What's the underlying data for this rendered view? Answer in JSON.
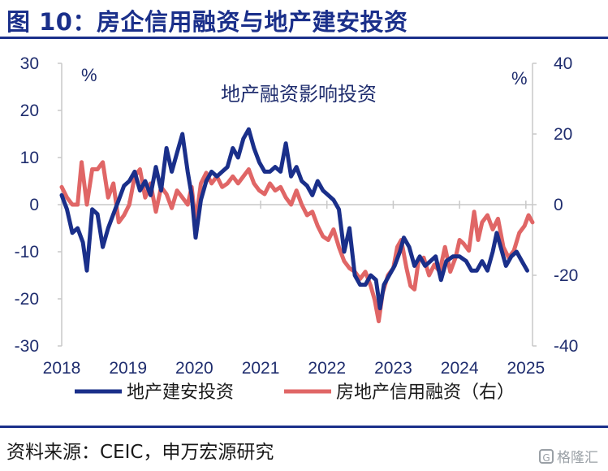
{
  "header": {
    "title": "图 10：房企信用融资与地产建安投资"
  },
  "footer": {
    "source": "资料来源：CEIC，申万宏源研究",
    "watermark": "格隆汇",
    "watermark_icon": "G"
  },
  "colors": {
    "navy": "#1a2f8a",
    "series_left": "#1a2f8a",
    "series_right": "#e06666"
  },
  "chart_data": {
    "type": "line",
    "title": "地产融资影响投资",
    "y_left": {
      "unit": "%",
      "lim": [
        -30,
        30
      ],
      "ticks": [
        30,
        20,
        10,
        0,
        -10,
        -20,
        -30
      ]
    },
    "y_right": {
      "unit": "%",
      "lim": [
        -40,
        40
      ],
      "ticks": [
        40,
        20,
        0,
        -20,
        -40
      ]
    },
    "x": {
      "lim": [
        2018,
        2025.1
      ],
      "ticks": [
        2018,
        2019,
        2020,
        2021,
        2022,
        2023,
        2024,
        2025
      ]
    },
    "series": [
      {
        "name": "地产建安投资",
        "axis": "left",
        "color": "#1a2f8a",
        "points": [
          [
            2018.0,
            2
          ],
          [
            2018.08,
            -1
          ],
          [
            2018.16,
            -6
          ],
          [
            2018.24,
            -5
          ],
          [
            2018.32,
            -8
          ],
          [
            2018.38,
            -14
          ],
          [
            2018.46,
            -1
          ],
          [
            2018.54,
            -2
          ],
          [
            2018.62,
            -9
          ],
          [
            2018.7,
            -5
          ],
          [
            2018.78,
            -2
          ],
          [
            2018.86,
            1
          ],
          [
            2018.94,
            4
          ],
          [
            2019.02,
            5
          ],
          [
            2019.1,
            7
          ],
          [
            2019.18,
            3
          ],
          [
            2019.26,
            5
          ],
          [
            2019.34,
            2
          ],
          [
            2019.42,
            8
          ],
          [
            2019.5,
            3
          ],
          [
            2019.58,
            12
          ],
          [
            2019.66,
            7
          ],
          [
            2019.74,
            11
          ],
          [
            2019.82,
            15
          ],
          [
            2019.9,
            7
          ],
          [
            2019.96,
            2
          ],
          [
            2020.02,
            -7
          ],
          [
            2020.1,
            1
          ],
          [
            2020.18,
            5
          ],
          [
            2020.26,
            7
          ],
          [
            2020.34,
            6
          ],
          [
            2020.42,
            7
          ],
          [
            2020.5,
            8
          ],
          [
            2020.58,
            12
          ],
          [
            2020.66,
            10
          ],
          [
            2020.74,
            14
          ],
          [
            2020.82,
            16
          ],
          [
            2020.9,
            12
          ],
          [
            2020.98,
            9
          ],
          [
            2021.06,
            7
          ],
          [
            2021.14,
            7
          ],
          [
            2021.22,
            8
          ],
          [
            2021.3,
            7
          ],
          [
            2021.38,
            13
          ],
          [
            2021.46,
            6
          ],
          [
            2021.54,
            8
          ],
          [
            2021.62,
            5
          ],
          [
            2021.7,
            4
          ],
          [
            2021.78,
            2
          ],
          [
            2021.86,
            5
          ],
          [
            2021.94,
            3
          ],
          [
            2022.02,
            2
          ],
          [
            2022.1,
            1
          ],
          [
            2022.18,
            -1
          ],
          [
            2022.26,
            -10
          ],
          [
            2022.34,
            -5
          ],
          [
            2022.42,
            -15
          ],
          [
            2022.5,
            -17
          ],
          [
            2022.58,
            -17
          ],
          [
            2022.66,
            -15
          ],
          [
            2022.74,
            -16
          ],
          [
            2022.8,
            -22
          ],
          [
            2022.86,
            -17
          ],
          [
            2022.94,
            -15
          ],
          [
            2023.02,
            -13
          ],
          [
            2023.1,
            -10
          ],
          [
            2023.16,
            -7
          ],
          [
            2023.24,
            -9
          ],
          [
            2023.32,
            -13
          ],
          [
            2023.4,
            -11
          ],
          [
            2023.48,
            -13
          ],
          [
            2023.56,
            -12
          ],
          [
            2023.64,
            -11
          ],
          [
            2023.72,
            -16
          ],
          [
            2023.8,
            -12
          ],
          [
            2023.9,
            -11
          ],
          [
            2024.0,
            -11
          ],
          [
            2024.1,
            -12
          ],
          [
            2024.18,
            -14
          ],
          [
            2024.26,
            -14
          ],
          [
            2024.34,
            -12
          ],
          [
            2024.42,
            -14
          ],
          [
            2024.5,
            -10
          ],
          [
            2024.56,
            -6
          ],
          [
            2024.62,
            -9
          ],
          [
            2024.7,
            -13
          ],
          [
            2024.78,
            -11
          ],
          [
            2024.86,
            -10
          ],
          [
            2024.94,
            -12
          ],
          [
            2025.02,
            -14
          ]
        ]
      },
      {
        "name": "房地产信用融资（右）",
        "axis": "right",
        "color": "#e06666",
        "points": [
          [
            2018.0,
            5
          ],
          [
            2018.08,
            2
          ],
          [
            2018.16,
            0
          ],
          [
            2018.24,
            0
          ],
          [
            2018.3,
            12
          ],
          [
            2018.38,
            0
          ],
          [
            2018.46,
            10
          ],
          [
            2018.54,
            10
          ],
          [
            2018.62,
            12
          ],
          [
            2018.7,
            2
          ],
          [
            2018.78,
            6
          ],
          [
            2018.86,
            -5
          ],
          [
            2018.94,
            -3
          ],
          [
            2019.02,
            0
          ],
          [
            2019.1,
            8
          ],
          [
            2019.18,
            10
          ],
          [
            2019.26,
            2
          ],
          [
            2019.34,
            6
          ],
          [
            2019.42,
            -2
          ],
          [
            2019.5,
            5
          ],
          [
            2019.58,
            3
          ],
          [
            2019.66,
            -1
          ],
          [
            2019.74,
            4
          ],
          [
            2019.82,
            2
          ],
          [
            2019.9,
            0
          ],
          [
            2019.96,
            5
          ],
          [
            2020.02,
            -5
          ],
          [
            2020.1,
            6
          ],
          [
            2020.18,
            9
          ],
          [
            2020.26,
            6
          ],
          [
            2020.34,
            8
          ],
          [
            2020.42,
            5
          ],
          [
            2020.5,
            6
          ],
          [
            2020.58,
            8
          ],
          [
            2020.66,
            6
          ],
          [
            2020.74,
            8
          ],
          [
            2020.82,
            10
          ],
          [
            2020.9,
            6
          ],
          [
            2020.98,
            4
          ],
          [
            2021.06,
            3
          ],
          [
            2021.14,
            6
          ],
          [
            2021.22,
            4
          ],
          [
            2021.3,
            5
          ],
          [
            2021.38,
            2
          ],
          [
            2021.46,
            0
          ],
          [
            2021.54,
            4
          ],
          [
            2021.62,
            0
          ],
          [
            2021.7,
            -3
          ],
          [
            2021.78,
            -2
          ],
          [
            2021.86,
            -6
          ],
          [
            2021.94,
            -9
          ],
          [
            2022.02,
            -10
          ],
          [
            2022.1,
            -7
          ],
          [
            2022.18,
            -12
          ],
          [
            2022.26,
            -16
          ],
          [
            2022.34,
            -18
          ],
          [
            2022.42,
            -19
          ],
          [
            2022.5,
            -21
          ],
          [
            2022.58,
            -19
          ],
          [
            2022.66,
            -23
          ],
          [
            2022.72,
            -27
          ],
          [
            2022.78,
            -33
          ],
          [
            2022.84,
            -25
          ],
          [
            2022.92,
            -20
          ],
          [
            2023.0,
            -18
          ],
          [
            2023.06,
            -12
          ],
          [
            2023.12,
            -10
          ],
          [
            2023.2,
            -18
          ],
          [
            2023.26,
            -23
          ],
          [
            2023.32,
            -24
          ],
          [
            2023.38,
            -16
          ],
          [
            2023.46,
            -15
          ],
          [
            2023.54,
            -20
          ],
          [
            2023.62,
            -17
          ],
          [
            2023.7,
            -19
          ],
          [
            2023.78,
            -12
          ],
          [
            2023.86,
            -19
          ],
          [
            2023.94,
            -15
          ],
          [
            2024.0,
            -10
          ],
          [
            2024.06,
            -11
          ],
          [
            2024.14,
            -13
          ],
          [
            2024.22,
            -2
          ],
          [
            2024.28,
            -10
          ],
          [
            2024.34,
            -5
          ],
          [
            2024.42,
            -3
          ],
          [
            2024.5,
            -7
          ],
          [
            2024.58,
            -4
          ],
          [
            2024.66,
            -12
          ],
          [
            2024.74,
            -15
          ],
          [
            2024.82,
            -13
          ],
          [
            2024.9,
            -8
          ],
          [
            2024.98,
            -6
          ],
          [
            2025.04,
            -3
          ],
          [
            2025.1,
            -5
          ]
        ]
      }
    ]
  }
}
